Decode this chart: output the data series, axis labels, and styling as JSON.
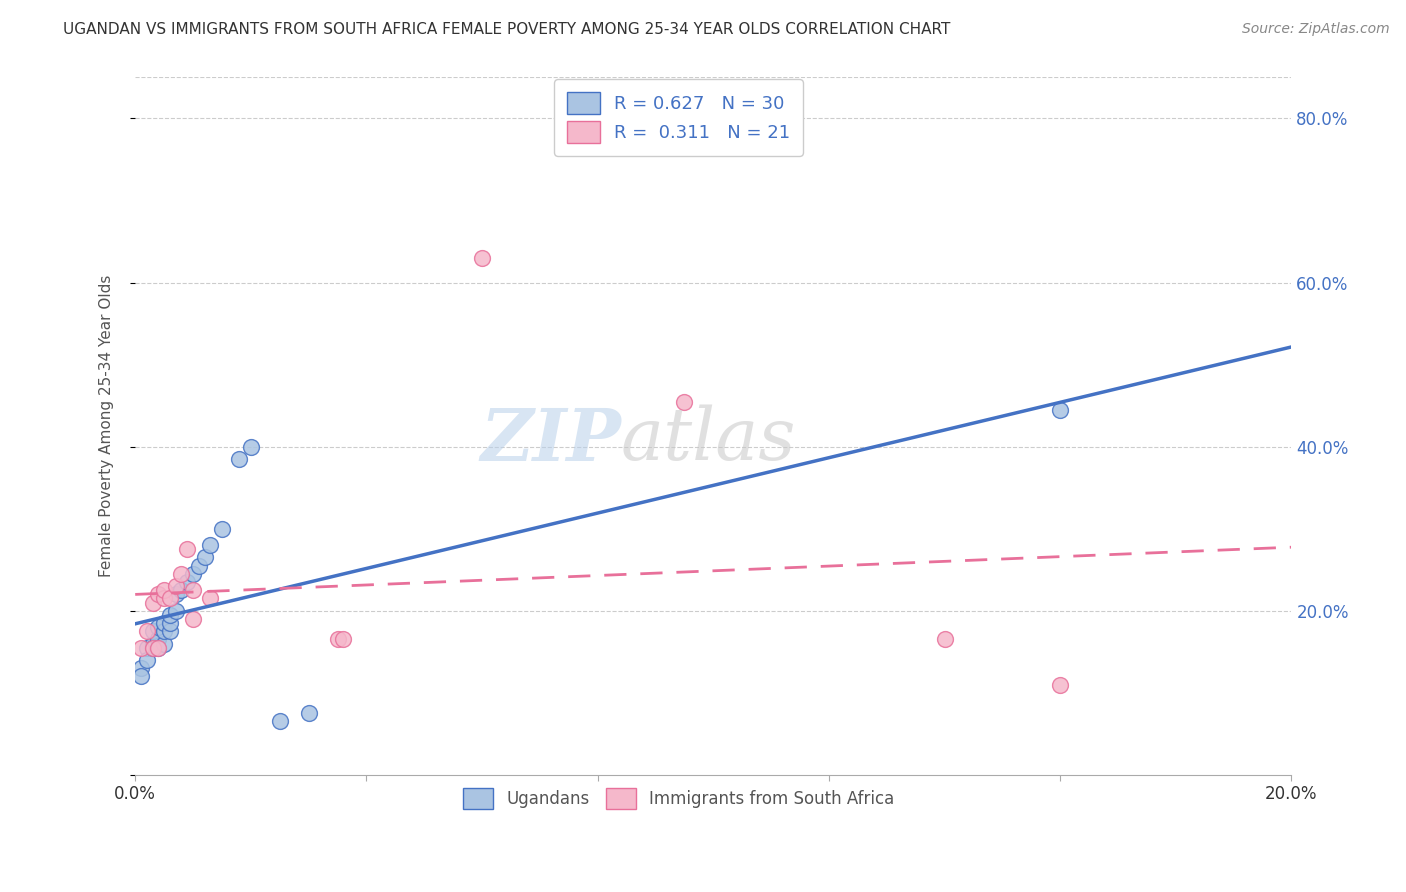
{
  "title": "UGANDAN VS IMMIGRANTS FROM SOUTH AFRICA FEMALE POVERTY AMONG 25-34 YEAR OLDS CORRELATION CHART",
  "source": "Source: ZipAtlas.com",
  "ylabel": "Female Poverty Among 25-34 Year Olds",
  "xlim": [
    0.0,
    0.2
  ],
  "ylim": [
    0.0,
    0.85
  ],
  "legend_r1": "0.627",
  "legend_n1": "30",
  "legend_r2": "0.311",
  "legend_n2": "21",
  "color_ugandan": "#aac4e2",
  "color_immigrant": "#f5b8cb",
  "line_color_ugandan": "#4472c4",
  "line_color_immigrant": "#e8709a",
  "background_color": "#ffffff",
  "ugandan_x": [
    0.001,
    0.001,
    0.002,
    0.002,
    0.003,
    0.003,
    0.003,
    0.004,
    0.004,
    0.004,
    0.005,
    0.005,
    0.005,
    0.006,
    0.006,
    0.006,
    0.007,
    0.007,
    0.008,
    0.009,
    0.01,
    0.011,
    0.012,
    0.013,
    0.015,
    0.018,
    0.02,
    0.025,
    0.03,
    0.16
  ],
  "ugandan_y": [
    0.13,
    0.12,
    0.155,
    0.14,
    0.16,
    0.175,
    0.155,
    0.165,
    0.18,
    0.155,
    0.16,
    0.175,
    0.185,
    0.175,
    0.185,
    0.195,
    0.2,
    0.22,
    0.225,
    0.235,
    0.245,
    0.255,
    0.265,
    0.28,
    0.3,
    0.385,
    0.4,
    0.065,
    0.075,
    0.445
  ],
  "immigrant_x": [
    0.001,
    0.002,
    0.003,
    0.003,
    0.004,
    0.004,
    0.005,
    0.005,
    0.006,
    0.007,
    0.008,
    0.009,
    0.01,
    0.01,
    0.013,
    0.035,
    0.036,
    0.06,
    0.095,
    0.14,
    0.16
  ],
  "immigrant_y": [
    0.155,
    0.175,
    0.155,
    0.21,
    0.155,
    0.22,
    0.215,
    0.225,
    0.215,
    0.23,
    0.245,
    0.275,
    0.225,
    0.19,
    0.215,
    0.165,
    0.165,
    0.63,
    0.455,
    0.165,
    0.11
  ],
  "watermark_zip_color": "#b0c8e8",
  "watermark_atlas_color": "#d0d0d0"
}
